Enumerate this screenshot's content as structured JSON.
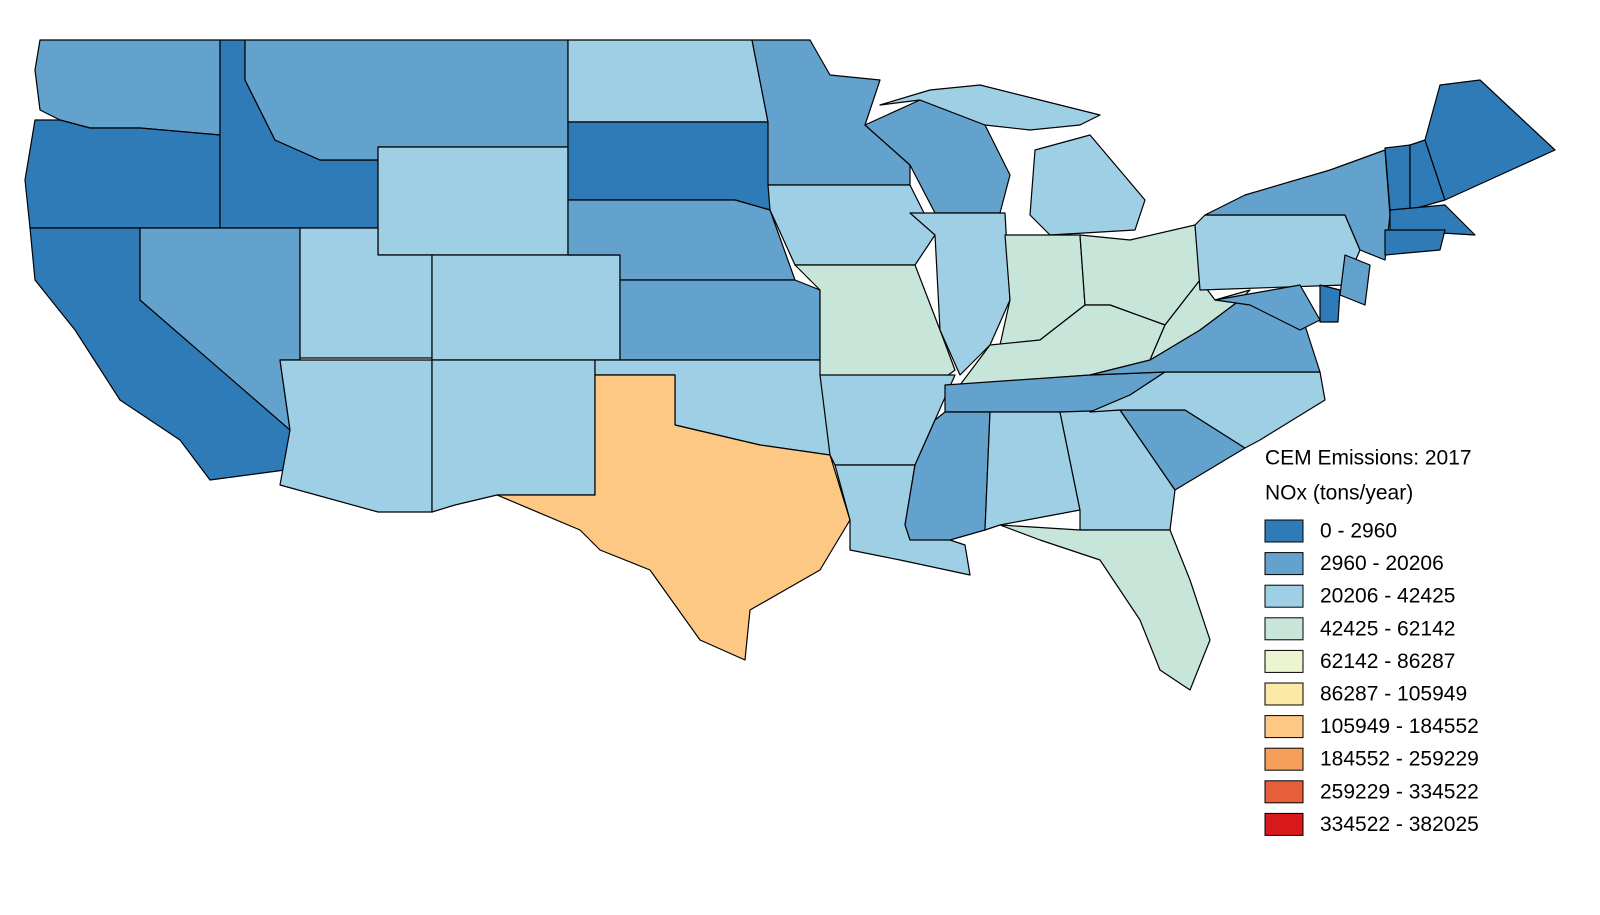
{
  "legend": {
    "title": "CEM Emissions: 2017",
    "subtitle": "NOx (tons/year)",
    "items": [
      {
        "label": "0 - 2960",
        "color": "#2f7bb8"
      },
      {
        "label": "2960 - 20206",
        "color": "#62a2cd"
      },
      {
        "label": "20206 - 42425",
        "color": "#9ecfe4"
      },
      {
        "label": "42425 - 62142",
        "color": "#c7e5d9"
      },
      {
        "label": "62142 - 86287",
        "color": "#ebf5cf"
      },
      {
        "label": "86287 - 105949",
        "color": "#fde9a6"
      },
      {
        "label": "105949 - 184552",
        "color": "#fcc884"
      },
      {
        "label": "184552 - 259229",
        "color": "#f69f5a"
      },
      {
        "label": "259229 - 334522",
        "color": "#e75e3b"
      },
      {
        "label": "334522 - 382025",
        "color": "#d7191c"
      }
    ]
  }
}
